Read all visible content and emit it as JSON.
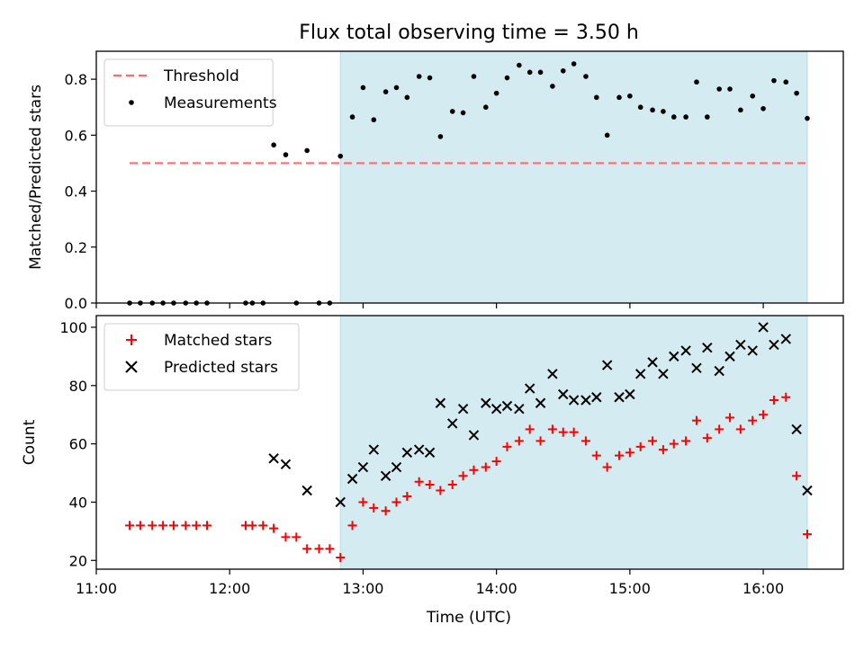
{
  "chart_data": {
    "title": "Flux total observing time = 3.50 h",
    "xlabel": "Time (UTC)",
    "x_ticks": [
      "11:00",
      "12:00",
      "13:00",
      "14:00",
      "15:00",
      "16:00"
    ],
    "x_tick_values_hours": [
      11,
      12,
      13,
      14,
      15,
      16
    ],
    "xlim_hours": [
      11.0,
      16.6
    ],
    "observing_window_hours": [
      12.83,
      16.33
    ],
    "colors": {
      "window": "#d4ebf2",
      "threshold": "#ff6b6b",
      "measurements": "#000000",
      "matched": "#ff0000",
      "predicted": "#000000"
    },
    "panels": [
      {
        "type": "scatter",
        "ylabel": "Matched/Predicted stars",
        "ylim": [
          0,
          0.9
        ],
        "y_ticks": [
          "0.0",
          "0.2",
          "0.4",
          "0.6",
          "0.8"
        ],
        "y_tick_values": [
          0.0,
          0.2,
          0.4,
          0.6,
          0.8
        ],
        "legend": "top-left",
        "threshold": {
          "name": "Threshold",
          "value": 0.5,
          "x_range_hours": [
            11.25,
            16.33
          ]
        },
        "series": [
          {
            "name": "Measurements",
            "marker": "dot",
            "x": [
              11.25,
              11.33,
              11.42,
              11.5,
              11.58,
              11.67,
              11.75,
              11.83,
              12.12,
              12.17,
              12.25,
              12.33,
              12.42,
              12.5,
              12.58,
              12.67,
              12.75,
              12.83,
              12.92,
              13.0,
              13.08,
              13.17,
              13.25,
              13.33,
              13.42,
              13.5,
              13.58,
              13.67,
              13.75,
              13.83,
              13.92,
              14.0,
              14.08,
              14.17,
              14.25,
              14.33,
              14.42,
              14.5,
              14.58,
              14.67,
              14.75,
              14.83,
              14.92,
              15.0,
              15.08,
              15.17,
              15.25,
              15.33,
              15.42,
              15.5,
              15.58,
              15.67,
              15.75,
              15.83,
              15.92,
              16.0,
              16.08,
              16.17,
              16.25,
              16.33
            ],
            "y": [
              0.0,
              0.0,
              0.0,
              0.0,
              0.0,
              0.0,
              0.0,
              0.0,
              0.0,
              0.0,
              0.0,
              0.565,
              0.53,
              0.0,
              0.545,
              0.0,
              0.0,
              0.525,
              0.665,
              0.77,
              0.655,
              0.755,
              0.77,
              0.735,
              0.81,
              0.805,
              0.595,
              0.685,
              0.68,
              0.81,
              0.7,
              0.75,
              0.805,
              0.85,
              0.825,
              0.825,
              0.775,
              0.83,
              0.855,
              0.81,
              0.735,
              0.6,
              0.735,
              0.74,
              0.7,
              0.69,
              0.685,
              0.665,
              0.665,
              0.79,
              0.665,
              0.765,
              0.765,
              0.69,
              0.74,
              0.695,
              0.795,
              0.79,
              0.75,
              0.66
            ]
          }
        ]
      },
      {
        "type": "scatter",
        "ylabel": "Count",
        "ylim": [
          17,
          104
        ],
        "y_ticks": [
          "20",
          "40",
          "60",
          "80",
          "100"
        ],
        "y_tick_values": [
          20,
          40,
          60,
          80,
          100
        ],
        "legend": "top-left",
        "series": [
          {
            "name": "Matched stars",
            "marker": "plus",
            "x": [
              11.25,
              11.33,
              11.42,
              11.5,
              11.58,
              11.67,
              11.75,
              11.83,
              12.12,
              12.17,
              12.25,
              12.33,
              12.42,
              12.5,
              12.58,
              12.67,
              12.75,
              12.83,
              12.92,
              13.0,
              13.08,
              13.17,
              13.25,
              13.33,
              13.42,
              13.5,
              13.58,
              13.67,
              13.75,
              13.83,
              13.92,
              14.0,
              14.08,
              14.17,
              14.25,
              14.33,
              14.42,
              14.5,
              14.58,
              14.67,
              14.75,
              14.83,
              14.92,
              15.0,
              15.08,
              15.17,
              15.25,
              15.33,
              15.42,
              15.5,
              15.58,
              15.67,
              15.75,
              15.83,
              15.92,
              16.0,
              16.08,
              16.17,
              16.25,
              16.33
            ],
            "y": [
              32,
              32,
              32,
              32,
              32,
              32,
              32,
              32,
              32,
              32,
              32,
              31,
              28,
              28,
              24,
              24,
              24,
              21,
              32,
              40,
              38,
              37,
              40,
              42,
              47,
              46,
              44,
              46,
              49,
              51,
              52,
              54,
              59,
              61,
              65,
              61,
              65,
              64,
              64,
              61,
              56,
              52,
              56,
              57,
              59,
              61,
              58,
              60,
              61,
              68,
              62,
              65,
              69,
              65,
              68,
              70,
              75,
              76,
              49,
              29
            ]
          },
          {
            "name": "Predicted stars",
            "marker": "x",
            "x": [
              12.33,
              12.42,
              12.58,
              12.83,
              12.92,
              13.0,
              13.08,
              13.17,
              13.25,
              13.33,
              13.42,
              13.5,
              13.58,
              13.67,
              13.75,
              13.83,
              13.92,
              14.0,
              14.08,
              14.17,
              14.25,
              14.33,
              14.42,
              14.5,
              14.58,
              14.67,
              14.75,
              14.83,
              14.92,
              15.0,
              15.08,
              15.17,
              15.25,
              15.33,
              15.42,
              15.5,
              15.58,
              15.67,
              15.75,
              15.83,
              15.92,
              16.0,
              16.08,
              16.17,
              16.25,
              16.33
            ],
            "y": [
              55,
              53,
              44,
              40,
              48,
              52,
              58,
              49,
              52,
              57,
              58,
              57,
              74,
              67,
              72,
              63,
              74,
              72,
              73,
              72,
              79,
              74,
              84,
              77,
              75,
              75,
              76,
              87,
              76,
              77,
              84,
              88,
              84,
              90,
              92,
              86,
              93,
              85,
              90,
              94,
              92,
              100,
              94,
              96,
              65,
              44
            ]
          }
        ]
      }
    ]
  }
}
